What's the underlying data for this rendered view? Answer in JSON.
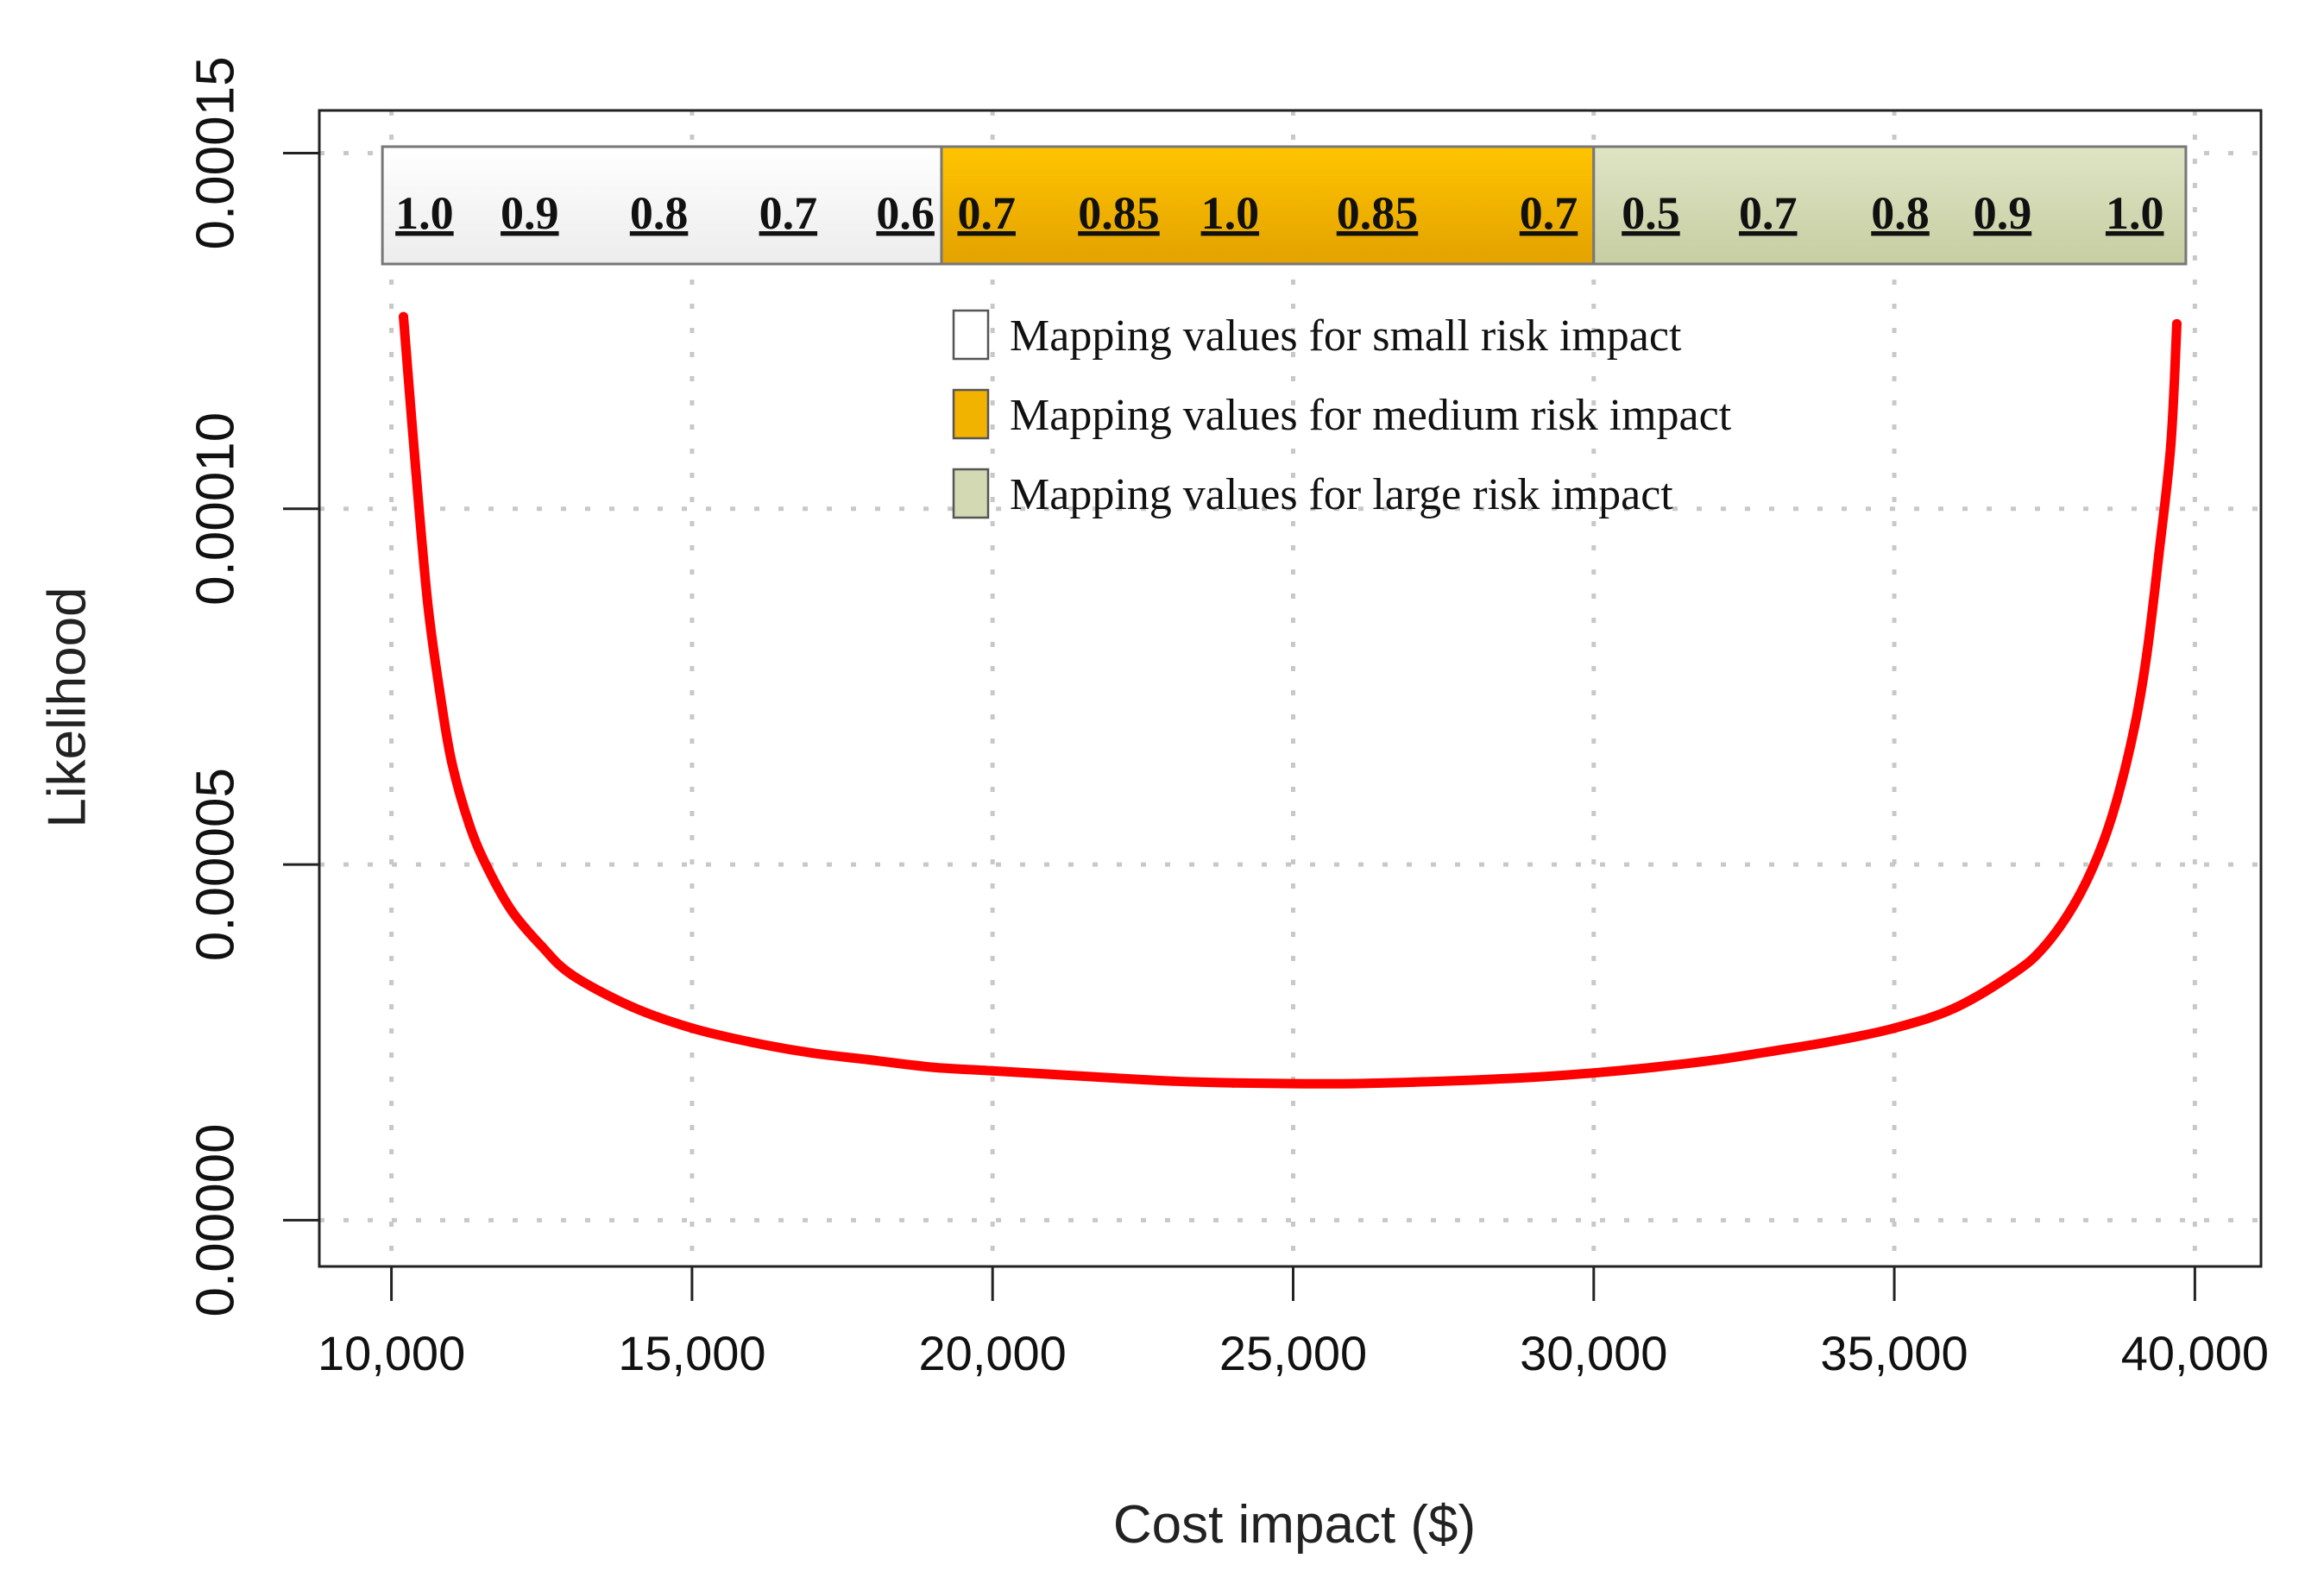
{
  "chart_data": {
    "type": "line",
    "title": "",
    "xlabel": "Cost impact ($)",
    "ylabel": "Likelihood",
    "xlim": [
      8800,
      41100
    ],
    "ylim": [
      -6.5e-06,
      0.000156
    ],
    "x_ticks": [
      10000,
      15000,
      20000,
      25000,
      30000,
      35000,
      40000
    ],
    "x_tick_labels": [
      "10,000",
      "15,000",
      "20,000",
      "25,000",
      "30,000",
      "35,000",
      "40,000"
    ],
    "y_ticks": [
      0,
      5e-05,
      0.0001,
      0.00015
    ],
    "y_tick_labels": [
      "0.00000",
      "0.00005",
      "0.00010",
      "0.00015"
    ],
    "grid": true,
    "line_color": "#ff0000",
    "series": [
      {
        "name": "Likelihood",
        "x": [
          10200,
          10400,
          10600,
          10800,
          11000,
          11300,
          11600,
          12000,
          12500,
          13000,
          14000,
          15000,
          16000,
          17000,
          18000,
          19000,
          20000,
          21000,
          22000,
          23000,
          24000,
          25000,
          26000,
          27000,
          28000,
          29000,
          30000,
          31000,
          32000,
          33000,
          34000,
          35000,
          36000,
          37000,
          37500,
          38000,
          38400,
          38700,
          39000,
          39200,
          39400,
          39600,
          39700
        ],
        "y": [
          0.000127,
          0.000106,
          8.7e-05,
          7.45e-05,
          6.45e-05,
          5.55e-05,
          4.95e-05,
          4.35e-05,
          3.85e-05,
          3.45e-05,
          3e-05,
          2.7e-05,
          2.5e-05,
          2.35e-05,
          2.25e-05,
          2.15e-05,
          2.1e-05,
          2.05e-05,
          2e-05,
          1.955e-05,
          1.93e-05,
          1.92e-05,
          1.92e-05,
          1.94e-05,
          1.97e-05,
          2.01e-05,
          2.07e-05,
          2.15e-05,
          2.25e-05,
          2.38e-05,
          2.52e-05,
          2.7e-05,
          2.98e-05,
          3.48e-05,
          3.85e-05,
          4.45e-05,
          5.15e-05,
          5.9e-05,
          6.95e-05,
          7.95e-05,
          9.35e-05,
          0.000109,
          0.000126
        ]
      }
    ],
    "mapping_bar": {
      "segments": [
        {
          "category": "small",
          "color": "#f5f5f5",
          "start_x": 9850,
          "end_x": 19150,
          "values": [
            "1.0",
            "0.9",
            "0.8",
            "0.7",
            "0.6"
          ],
          "value_x": [
            10550,
            12300,
            14450,
            16600,
            18550
          ]
        },
        {
          "category": "medium",
          "color": "#f2b300",
          "start_x": 19150,
          "end_x": 30000,
          "values": [
            "0.7",
            "0.85",
            "1.0",
            "0.85",
            "0.7"
          ],
          "value_x": [
            19900,
            22100,
            23950,
            26400,
            29250
          ]
        },
        {
          "category": "large",
          "color": "#d3d9b2",
          "start_x": 30000,
          "end_x": 39850,
          "values": [
            "0.5",
            "0.7",
            "0.8",
            "0.9",
            "1.0"
          ],
          "value_x": [
            30950,
            32900,
            35100,
            36800,
            39000
          ]
        }
      ]
    },
    "legend": {
      "placement": "top-center",
      "entries": [
        {
          "label": "Mapping values for small risk impact",
          "color": "#ffffff"
        },
        {
          "label": "Mapping values for medium risk impact",
          "color": "#f2b300"
        },
        {
          "label": "Mapping values for large risk impact",
          "color": "#d3d9b2"
        }
      ]
    }
  }
}
